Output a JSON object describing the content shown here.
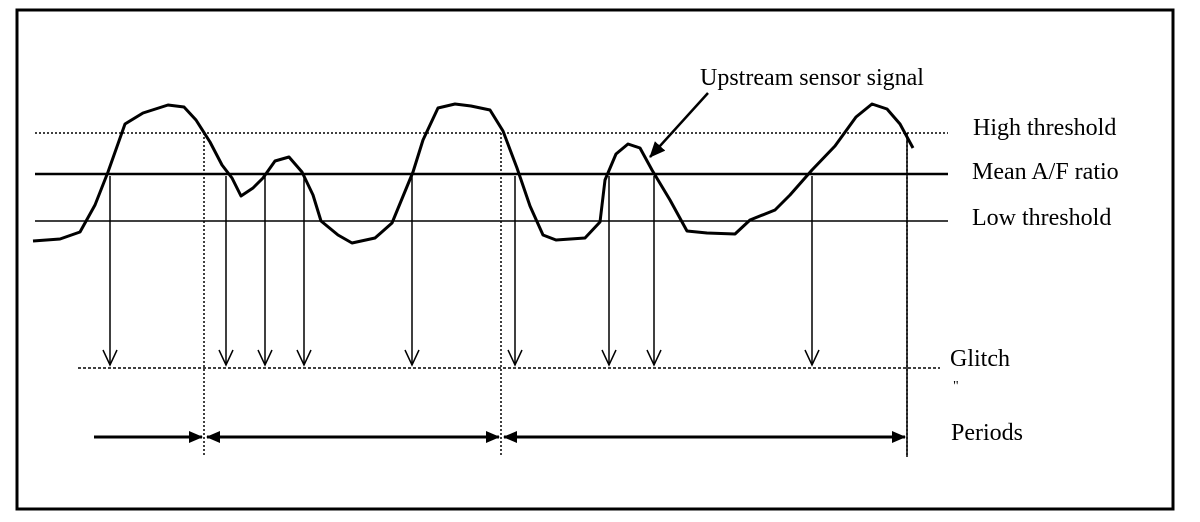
{
  "labels": {
    "signal": "Upstream sensor signal",
    "high_threshold": "High threshold",
    "mean_ratio": "Mean A/F ratio",
    "low_threshold": "Low threshold",
    "glitch": "Glitch",
    "glitch_sub": "\"",
    "periods": "Periods"
  },
  "colors": {
    "ink": "#000000",
    "background": "#ffffff"
  }
}
